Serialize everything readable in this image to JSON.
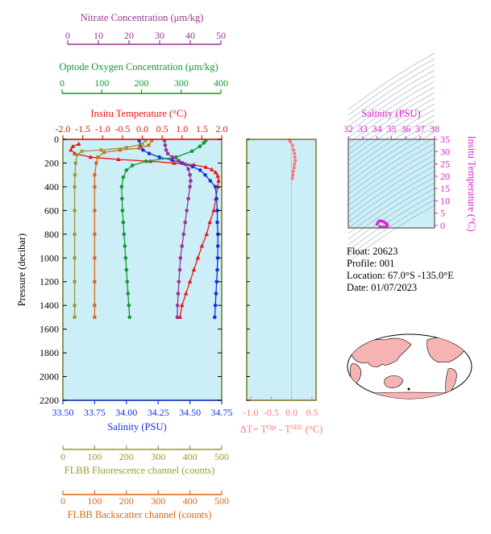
{
  "info": {
    "float": "Float:  20623",
    "profile": "Profile:  001",
    "location": "Location:  67.0°S  -135.0°E",
    "date": "Date:  01/07/2023"
  },
  "colors": {
    "nitrate": "#993399",
    "oxygen": "#119933",
    "temperature": "#ee1111",
    "salinity": "#1133dd",
    "fluorescence": "#999933",
    "backscatter": "#dd6611",
    "delta_t": "#ff7777",
    "ts_axis": "#dd22cc",
    "plot_bg": "#cceef7",
    "frame": "#777722"
  },
  "chart_data": [
    {
      "type": "line",
      "ylabel": "Pressure (decibar)",
      "ylim": [
        2200,
        0
      ],
      "y_ticks": [
        0,
        200,
        400,
        600,
        800,
        1000,
        1200,
        1400,
        1600,
        1800,
        2000,
        2200
      ],
      "grid": false,
      "axes": {
        "nitrate": {
          "label": "Nitrate Concentration (μm/kg)",
          "range": [
            0,
            50
          ],
          "ticks": [
            0,
            10,
            20,
            30,
            40,
            50
          ]
        },
        "oxygen": {
          "label": "Optode Oxygen Concentration (μm/kg)",
          "range": [
            0,
            400
          ],
          "ticks": [
            0,
            100,
            200,
            300,
            400
          ]
        },
        "temperature": {
          "label": "Insitu Temperature (°C)",
          "range": [
            -2.0,
            2.0
          ],
          "ticks": [
            "-2.0",
            "-1.5",
            "-1.0",
            "-0.5",
            "0.0",
            "0.5",
            "1.0",
            "1.5",
            "2.0"
          ]
        },
        "salinity": {
          "label": "Salinity (PSU)",
          "range": [
            33.5,
            34.75
          ],
          "ticks": [
            "33.50",
            "33.75",
            "34.00",
            "34.25",
            "34.50",
            "34.75"
          ]
        },
        "fluorescence": {
          "label": "FLBB Fluorescence channel (counts)",
          "range": [
            0,
            500
          ],
          "ticks": [
            0,
            100,
            200,
            300,
            400,
            500
          ]
        },
        "backscatter": {
          "label": "FLBB Backscatter channel (counts)",
          "range": [
            0,
            500
          ],
          "ticks": [
            0,
            100,
            200,
            300,
            400,
            500
          ]
        }
      },
      "series": [
        {
          "key": "temperature",
          "marker": "triangle",
          "points": [
            [
              -1.6,
              40
            ],
            [
              -1.75,
              60
            ],
            [
              -1.8,
              90
            ],
            [
              -1.7,
              120
            ],
            [
              -1.3,
              150
            ],
            [
              -0.6,
              170
            ],
            [
              0.2,
              185
            ],
            [
              0.8,
              200
            ],
            [
              1.3,
              215
            ],
            [
              1.6,
              235
            ],
            [
              1.75,
              255
            ],
            [
              1.85,
              280
            ],
            [
              1.9,
              310
            ],
            [
              1.92,
              350
            ],
            [
              1.9,
              400
            ],
            [
              1.85,
              500
            ],
            [
              1.8,
              600
            ],
            [
              1.7,
              700
            ],
            [
              1.62,
              800
            ],
            [
              1.5,
              900
            ],
            [
              1.4,
              1000
            ],
            [
              1.3,
              1100
            ],
            [
              1.2,
              1200
            ],
            [
              1.1,
              1300
            ],
            [
              1.0,
              1400
            ],
            [
              0.95,
              1500
            ]
          ]
        },
        {
          "key": "salinity",
          "marker": "circle",
          "points": [
            [
              34.1,
              10
            ],
            [
              34.11,
              50
            ],
            [
              34.13,
              90
            ],
            [
              34.18,
              120
            ],
            [
              34.26,
              150
            ],
            [
              34.36,
              175
            ],
            [
              34.44,
              200
            ],
            [
              34.52,
              230
            ],
            [
              34.58,
              260
            ],
            [
              34.62,
              300
            ],
            [
              34.66,
              350
            ],
            [
              34.7,
              400
            ],
            [
              34.71,
              500
            ],
            [
              34.715,
              600
            ],
            [
              34.715,
              700
            ],
            [
              34.72,
              800
            ],
            [
              34.72,
              900
            ],
            [
              34.718,
              1000
            ],
            [
              34.715,
              1100
            ],
            [
              34.71,
              1200
            ],
            [
              34.705,
              1300
            ],
            [
              34.7,
              1400
            ],
            [
              34.695,
              1500
            ]
          ]
        },
        {
          "key": "oxygen",
          "marker": "circle",
          "points": [
            [
              360,
              10
            ],
            [
              355,
              30
            ],
            [
              345,
              60
            ],
            [
              325,
              100
            ],
            [
              285,
              150
            ],
            [
              210,
              185
            ],
            [
              175,
              220
            ],
            [
              160,
              260
            ],
            [
              152,
              320
            ],
            [
              148,
              400
            ],
            [
              149,
              500
            ],
            [
              150,
              600
            ],
            [
              152,
              700
            ],
            [
              154,
              800
            ],
            [
              156,
              900
            ],
            [
              158,
              1000
            ],
            [
              160,
              1100
            ],
            [
              162,
              1200
            ],
            [
              164,
              1300
            ],
            [
              166,
              1400
            ],
            [
              168,
              1500
            ]
          ]
        },
        {
          "key": "nitrate",
          "marker": "circle",
          "points": [
            [
              32,
              10
            ],
            [
              32.2,
              50
            ],
            [
              32.5,
              90
            ],
            [
              33,
              120
            ],
            [
              34.5,
              150
            ],
            [
              36.5,
              180
            ],
            [
              38.5,
              210
            ],
            [
              39.5,
              250
            ],
            [
              40,
              300
            ],
            [
              40.2,
              350
            ],
            [
              40,
              400
            ],
            [
              39.5,
              500
            ],
            [
              39,
              600
            ],
            [
              38.5,
              700
            ],
            [
              38,
              800
            ],
            [
              37.5,
              900
            ],
            [
              37,
              1000
            ],
            [
              36.8,
              1100
            ],
            [
              36.5,
              1200
            ],
            [
              36.3,
              1300
            ],
            [
              36.1,
              1400
            ],
            [
              36,
              1500
            ]
          ]
        },
        {
          "key": "fluorescence",
          "marker": "square",
          "points": [
            [
              260,
              10
            ],
            [
              250,
              40
            ],
            [
              200,
              70
            ],
            [
              120,
              90
            ],
            [
              60,
              100
            ],
            [
              45,
              130
            ],
            [
              40,
              200
            ],
            [
              38,
              300
            ],
            [
              37,
              400
            ],
            [
              37,
              600
            ],
            [
              37,
              800
            ],
            [
              37,
              1000
            ],
            [
              37,
              1200
            ],
            [
              37,
              1400
            ],
            [
              37,
              1500
            ]
          ]
        },
        {
          "key": "backscatter",
          "marker": "square",
          "points": [
            [
              280,
              10
            ],
            [
              270,
              50
            ],
            [
              240,
              75
            ],
            [
              180,
              90
            ],
            [
              130,
              110
            ],
            [
              110,
              150
            ],
            [
              105,
              200
            ],
            [
              100,
              300
            ],
            [
              100,
              400
            ],
            [
              100,
              600
            ],
            [
              100,
              800
            ],
            [
              100,
              1000
            ],
            [
              100,
              1200
            ],
            [
              100,
              1400
            ],
            [
              100,
              1500
            ]
          ]
        }
      ]
    },
    {
      "type": "line",
      "xlabel": "ΔT= T^Opt - T^SBE (°C)",
      "xlabel_parts": {
        "lead": "ΔT= T",
        "sup1": "Opt",
        "mid": " - T",
        "sup2": "SBE",
        "tail": " (°C)"
      },
      "xlim": [
        -1.1,
        0.6
      ],
      "x_ticks": [
        "-1.0",
        "-0.5",
        "0.0",
        "0.5"
      ],
      "ylim": [
        2200,
        0
      ],
      "points": [
        [
          -0.05,
          5
        ],
        [
          -0.03,
          20
        ],
        [
          0.02,
          50
        ],
        [
          0.05,
          90
        ],
        [
          0.07,
          120
        ],
        [
          0.08,
          150
        ],
        [
          0.09,
          180
        ],
        [
          0.07,
          210
        ],
        [
          0.06,
          240
        ],
        [
          0.04,
          270
        ],
        [
          0.03,
          300
        ],
        [
          0.02,
          330
        ]
      ]
    },
    {
      "type": "scatter",
      "title": "Salinity (PSU)",
      "ylabel": "Insitu Temperature (°C)",
      "xlim": [
        32,
        38
      ],
      "ylim": [
        -1,
        35
      ],
      "x_ticks": [
        32,
        33,
        34,
        35,
        36,
        37,
        38
      ],
      "y_ticks": [
        0,
        5,
        10,
        15,
        20,
        25,
        30,
        35
      ],
      "points": [
        [
          34.0,
          0.5
        ],
        [
          34.05,
          1.0
        ],
        [
          34.1,
          1.6
        ],
        [
          34.2,
          1.9
        ],
        [
          34.3,
          1.8
        ],
        [
          34.45,
          1.5
        ],
        [
          34.55,
          1.2
        ],
        [
          34.65,
          0.8
        ],
        [
          34.7,
          0.5
        ],
        [
          34.72,
          0.2
        ],
        [
          34.7,
          -0.2
        ],
        [
          34.6,
          -0.5
        ],
        [
          34.4,
          -0.6
        ],
        [
          34.2,
          -0.4
        ]
      ]
    }
  ]
}
